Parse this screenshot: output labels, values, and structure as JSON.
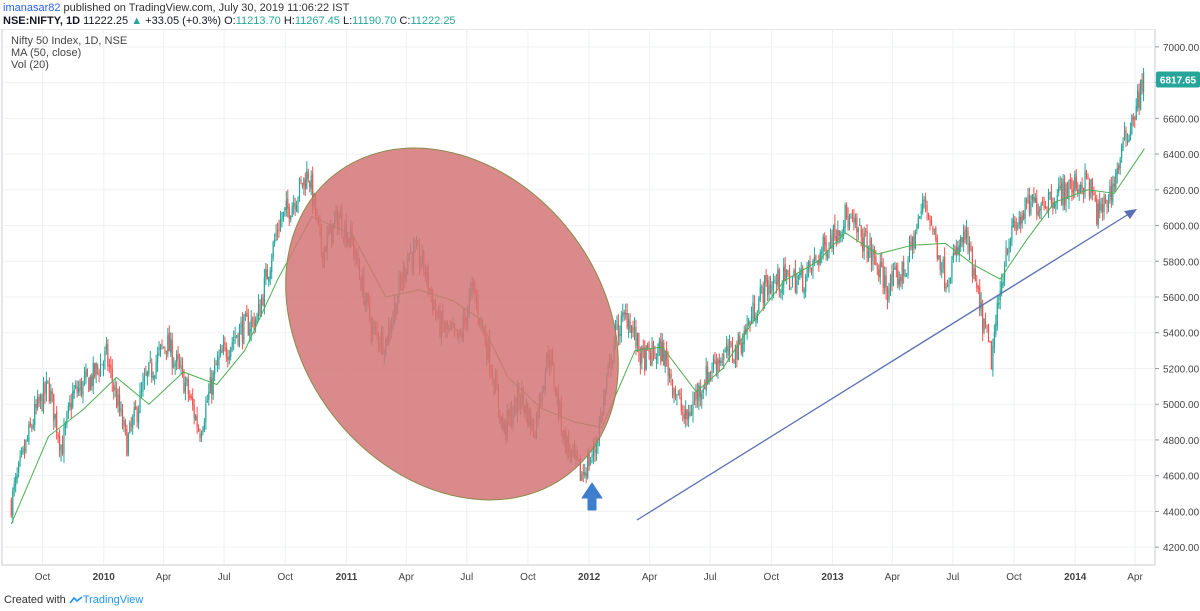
{
  "header": {
    "author": "imanasar82",
    "published": " published on TradingView.com, July 30, 2019 11:06:22 IST",
    "symbol": "NSE:NIFTY, 1D",
    "last": "11222.25",
    "change_arrow": "▲",
    "change": "+33.05 (+0.3%)",
    "o_label": "O:",
    "o": "11213.70",
    "h_label": "H:",
    "h": "11267.45",
    "l_label": "L:",
    "l": "11190.70",
    "c_label": "C:",
    "c": "11222.25"
  },
  "legend": {
    "title": "Nifty 50 Index, 1D, NSE",
    "ma": "MA (50, close)",
    "vol": "Vol (20)"
  },
  "footer": {
    "created_with": "Created with",
    "brand": "TradingView"
  },
  "colors": {
    "up": "#26a69a",
    "down": "#ef5350",
    "ma": "#4caf50",
    "ellipse_fill": "#d47575",
    "ellipse_stroke": "#8a8a4a",
    "trend_arrow": "#5b6fb5",
    "blue_arrow": "#3d7fcc",
    "price_badge": "#26a69a"
  },
  "chart_data": {
    "type": "line",
    "title": "Nifty 50 Index, 1D, NSE",
    "subtitle": "MA (50, close)",
    "ylim": [
      4100,
      7100
    ],
    "yticks": [
      "4200.00",
      "4400.00",
      "4600.00",
      "4800.00",
      "5000.00",
      "5200.00",
      "5400.00",
      "5600.00",
      "5800.00",
      "6000.00",
      "6200.00",
      "6400.00",
      "6600.00",
      "6800.00",
      "7000.00"
    ],
    "xlabels": [
      "Oct",
      "2010",
      "Apr",
      "Jul",
      "Oct",
      "2011",
      "Apr",
      "Jul",
      "Oct",
      "2012",
      "Apr",
      "Jul",
      "Oct",
      "2013",
      "Apr",
      "Jul",
      "Oct",
      "2014",
      "Apr"
    ],
    "x_time": [
      "2009-10",
      "2010-01",
      "2010-04",
      "2010-07",
      "2010-10",
      "2011-01",
      "2011-04",
      "2011-07",
      "2011-10",
      "2012-01",
      "2012-04",
      "2012-07",
      "2012-10",
      "2013-01",
      "2013-04",
      "2013-07",
      "2013-10",
      "2014-01",
      "2014-04"
    ],
    "last_price_label": "6817.65",
    "last_price": 6817.65,
    "price": [
      {
        "x": "2009-08-15",
        "y": 4450
      },
      {
        "x": "2009-09-01",
        "y": 4700
      },
      {
        "x": "2009-09-20",
        "y": 4950
      },
      {
        "x": "2009-10-10",
        "y": 5100
      },
      {
        "x": "2009-10-30",
        "y": 4750
      },
      {
        "x": "2009-11-15",
        "y": 5050
      },
      {
        "x": "2009-12-15",
        "y": 5150
      },
      {
        "x": "2010-01-05",
        "y": 5270
      },
      {
        "x": "2010-02-05",
        "y": 4780
      },
      {
        "x": "2010-03-05",
        "y": 5130
      },
      {
        "x": "2010-04-05",
        "y": 5350
      },
      {
        "x": "2010-05-05",
        "y": 5100
      },
      {
        "x": "2010-05-25",
        "y": 4850
      },
      {
        "x": "2010-06-20",
        "y": 5220
      },
      {
        "x": "2010-07-20",
        "y": 5400
      },
      {
        "x": "2010-08-20",
        "y": 5480
      },
      {
        "x": "2010-09-20",
        "y": 6000
      },
      {
        "x": "2010-10-15",
        "y": 6150
      },
      {
        "x": "2010-11-05",
        "y": 6300
      },
      {
        "x": "2010-11-25",
        "y": 5850
      },
      {
        "x": "2010-12-20",
        "y": 6050
      },
      {
        "x": "2011-01-10",
        "y": 5900
      },
      {
        "x": "2011-02-10",
        "y": 5400
      },
      {
        "x": "2011-03-01",
        "y": 5350
      },
      {
        "x": "2011-04-05",
        "y": 5850
      },
      {
        "x": "2011-04-25",
        "y": 5800
      },
      {
        "x": "2011-05-20",
        "y": 5450
      },
      {
        "x": "2011-06-20",
        "y": 5350
      },
      {
        "x": "2011-07-10",
        "y": 5650
      },
      {
        "x": "2011-08-05",
        "y": 5250
      },
      {
        "x": "2011-08-25",
        "y": 4850
      },
      {
        "x": "2011-09-20",
        "y": 5050
      },
      {
        "x": "2011-10-10",
        "y": 4850
      },
      {
        "x": "2011-11-01",
        "y": 5300
      },
      {
        "x": "2011-11-25",
        "y": 4800
      },
      {
        "x": "2011-12-20",
        "y": 4600
      },
      {
        "x": "2012-01-10",
        "y": 4750
      },
      {
        "x": "2012-02-10",
        "y": 5400
      },
      {
        "x": "2012-02-28",
        "y": 5500
      },
      {
        "x": "2012-03-20",
        "y": 5250
      },
      {
        "x": "2012-04-20",
        "y": 5300
      },
      {
        "x": "2012-05-25",
        "y": 4900
      },
      {
        "x": "2012-06-10",
        "y": 5050
      },
      {
        "x": "2012-07-10",
        "y": 5250
      },
      {
        "x": "2012-08-10",
        "y": 5300
      },
      {
        "x": "2012-09-20",
        "y": 5650
      },
      {
        "x": "2012-10-20",
        "y": 5700
      },
      {
        "x": "2012-11-20",
        "y": 5700
      },
      {
        "x": "2012-12-20",
        "y": 5880
      },
      {
        "x": "2013-01-20",
        "y": 6050
      },
      {
        "x": "2013-02-20",
        "y": 5900
      },
      {
        "x": "2013-03-25",
        "y": 5650
      },
      {
        "x": "2013-04-20",
        "y": 5750
      },
      {
        "x": "2013-05-20",
        "y": 6150
      },
      {
        "x": "2013-06-20",
        "y": 5700
      },
      {
        "x": "2013-07-20",
        "y": 5950
      },
      {
        "x": "2013-08-10",
        "y": 5550
      },
      {
        "x": "2013-08-28",
        "y": 5250
      },
      {
        "x": "2013-09-20",
        "y": 5900
      },
      {
        "x": "2013-10-20",
        "y": 6100
      },
      {
        "x": "2013-11-20",
        "y": 6150
      },
      {
        "x": "2013-12-20",
        "y": 6200
      },
      {
        "x": "2014-01-20",
        "y": 6250
      },
      {
        "x": "2014-02-05",
        "y": 6050
      },
      {
        "x": "2014-02-25",
        "y": 6200
      },
      {
        "x": "2014-03-15",
        "y": 6450
      },
      {
        "x": "2014-04-05",
        "y": 6700
      },
      {
        "x": "2014-04-15",
        "y": 6817.65
      }
    ],
    "ma": [
      {
        "x": "2009-08-15",
        "y": 4330
      },
      {
        "x": "2009-10-10",
        "y": 4820
      },
      {
        "x": "2009-12-01",
        "y": 4970
      },
      {
        "x": "2010-01-20",
        "y": 5150
      },
      {
        "x": "2010-03-10",
        "y": 5000
      },
      {
        "x": "2010-05-01",
        "y": 5180
      },
      {
        "x": "2010-06-20",
        "y": 5110
      },
      {
        "x": "2010-08-01",
        "y": 5300
      },
      {
        "x": "2010-09-20",
        "y": 5700
      },
      {
        "x": "2010-11-10",
        "y": 6050
      },
      {
        "x": "2011-01-10",
        "y": 5950
      },
      {
        "x": "2011-03-01",
        "y": 5600
      },
      {
        "x": "2011-04-20",
        "y": 5640
      },
      {
        "x": "2011-06-10",
        "y": 5580
      },
      {
        "x": "2011-07-20",
        "y": 5480
      },
      {
        "x": "2011-09-01",
        "y": 5150
      },
      {
        "x": "2011-10-20",
        "y": 4980
      },
      {
        "x": "2011-12-10",
        "y": 4900
      },
      {
        "x": "2012-01-20",
        "y": 4870
      },
      {
        "x": "2012-03-10",
        "y": 5300
      },
      {
        "x": "2012-04-20",
        "y": 5320
      },
      {
        "x": "2012-06-10",
        "y": 5070
      },
      {
        "x": "2012-07-20",
        "y": 5200
      },
      {
        "x": "2012-09-01",
        "y": 5450
      },
      {
        "x": "2012-10-20",
        "y": 5690
      },
      {
        "x": "2012-12-10",
        "y": 5800
      },
      {
        "x": "2013-01-20",
        "y": 5960
      },
      {
        "x": "2013-03-10",
        "y": 5840
      },
      {
        "x": "2013-05-01",
        "y": 5890
      },
      {
        "x": "2013-06-20",
        "y": 5900
      },
      {
        "x": "2013-08-01",
        "y": 5780
      },
      {
        "x": "2013-09-10",
        "y": 5700
      },
      {
        "x": "2013-10-20",
        "y": 5920
      },
      {
        "x": "2013-12-01",
        "y": 6130
      },
      {
        "x": "2014-01-20",
        "y": 6200
      },
      {
        "x": "2014-03-01",
        "y": 6180
      },
      {
        "x": "2014-04-15",
        "y": 6430
      }
    ]
  }
}
